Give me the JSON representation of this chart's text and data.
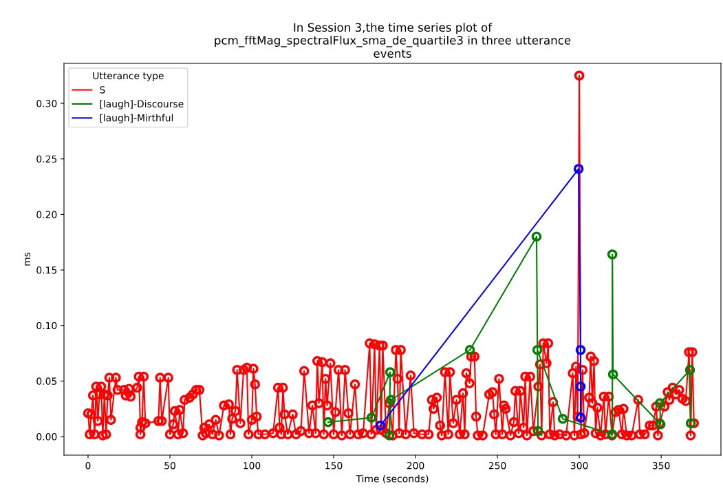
{
  "chart_data": {
    "type": "line",
    "title": "In Session 3,the time series plot of\npcm_fftMag_spectralFlux_sma_de_quartile3 in three utterance\nevents",
    "xlabel": "Time (seconds)",
    "ylabel": "ms",
    "legend_title": "Utterance type",
    "legend": "top left",
    "marker": "circle",
    "line_style": "solid",
    "grid": false,
    "xlim": [
      -14.7,
      386.5
    ],
    "ylim": [
      -0.0167,
      0.336
    ],
    "xticks": [
      0,
      50,
      100,
      150,
      200,
      250,
      300,
      350
    ],
    "yticks": [
      {
        "value": 0,
        "label": "0.00"
      },
      {
        "value": 0.05,
        "label": "0.05"
      },
      {
        "value": 0.1,
        "label": "0.10"
      },
      {
        "value": 0.15,
        "label": "0.15"
      },
      {
        "value": 0.2,
        "label": "0.20"
      },
      {
        "value": 0.25,
        "label": "0.25"
      },
      {
        "value": 0.3,
        "label": "0.30"
      }
    ],
    "series": [
      {
        "name": "S",
        "color": "#ff0000",
        "x": [
          0,
          1,
          2,
          3,
          4,
          5,
          6,
          7,
          8,
          9,
          10,
          11,
          12,
          13,
          14,
          17,
          18,
          22,
          23,
          25,
          26,
          30,
          31,
          32,
          32,
          33,
          34,
          35,
          43,
          44,
          45,
          49,
          50,
          52,
          53,
          55,
          56,
          58,
          59,
          62,
          64,
          66,
          68,
          70,
          71,
          72,
          74,
          76,
          78,
          80,
          83,
          86,
          87,
          88,
          90,
          91,
          93,
          95,
          97,
          98,
          100,
          101,
          102,
          103,
          104,
          108,
          113,
          116,
          117,
          118,
          119,
          120,
          122,
          125,
          127,
          130,
          132,
          135,
          137,
          139,
          140,
          141,
          143,
          144,
          145,
          146,
          148,
          150,
          151,
          153,
          155,
          157,
          159,
          160,
          163,
          165,
          168,
          172,
          173,
          175,
          176,
          178,
          179,
          180,
          182,
          184,
          186,
          188,
          189,
          190,
          191,
          194,
          197,
          199,
          204,
          208,
          210,
          211,
          213,
          215,
          216,
          218,
          220,
          221,
          223,
          225,
          227,
          229,
          230,
          231,
          233,
          234,
          236,
          237,
          238,
          241,
          245,
          247,
          248,
          249,
          251,
          253,
          254,
          255,
          258,
          260,
          261,
          263,
          264,
          266,
          267,
          268,
          270,
          272,
          275,
          276,
          277,
          278,
          280,
          281,
          282,
          284,
          285,
          288,
          292,
          296,
          297,
          298,
          299,
          300,
          301,
          302,
          303,
          306,
          307,
          308,
          309,
          310,
          311,
          313,
          315,
          316,
          318,
          320,
          322,
          324,
          326,
          327,
          329,
          332,
          336,
          337,
          340,
          343,
          345,
          347,
          348,
          349,
          352,
          354,
          355,
          357,
          359,
          361,
          363,
          365,
          367,
          368,
          369,
          370
        ],
        "values": [
          0.021,
          0.002,
          0.02,
          0.037,
          0.002,
          0.045,
          0.014,
          0.038,
          0.045,
          0.001,
          0.038,
          0.002,
          0.037,
          0.053,
          0.015,
          0.053,
          0.042,
          0.042,
          0.037,
          0.043,
          0.036,
          0.044,
          0.054,
          0.008,
          0.002,
          0.013,
          0.054,
          0.012,
          0.014,
          0.053,
          0.014,
          0.053,
          0.002,
          0.011,
          0.023,
          0.002,
          0.024,
          0.003,
          0.033,
          0.035,
          0.038,
          0.042,
          0.042,
          0.001,
          0.008,
          0.003,
          0.011,
          0.002,
          0.015,
          0.001,
          0.028,
          0.029,
          0.002,
          0.016,
          0.023,
          0.06,
          0.012,
          0.06,
          0.062,
          0.002,
          0.015,
          0.061,
          0.047,
          0.018,
          0.002,
          0.002,
          0.003,
          0.044,
          0.008,
          0.002,
          0.044,
          0.02,
          0.002,
          0.02,
          0.002,
          0.005,
          0.059,
          0.003,
          0.028,
          0.003,
          0.068,
          0.03,
          0.067,
          0.002,
          0.052,
          0.028,
          0.066,
          0.002,
          0.022,
          0.06,
          0.001,
          0.06,
          0.021,
          0.002,
          0.047,
          0.002,
          0.003,
          0.084,
          0.002,
          0.083,
          0.006,
          0.082,
          0.006,
          0.082,
          0.003,
          0.03,
          0.001,
          0.078,
          0.052,
          0.003,
          0.078,
          0.002,
          0.055,
          0.003,
          0.002,
          0.002,
          0.033,
          0.025,
          0.035,
          0.01,
          0.001,
          0.058,
          0.002,
          0.058,
          0.012,
          0.033,
          0.002,
          0.039,
          0.002,
          0.057,
          0.048,
          0.072,
          0.072,
          0.018,
          0.001,
          0.001,
          0.038,
          0.04,
          0.02,
          0.002,
          0.052,
          0.002,
          0.028,
          0.025,
          0.001,
          0.013,
          0.041,
          0.003,
          0.041,
          0.008,
          0.054,
          0.001,
          0.054,
          0.005,
          0.045,
          0.065,
          0.001,
          0.084,
          0.066,
          0.084,
          0.002,
          0.031,
          0.001,
          0.002,
          0.001,
          0.057,
          0.001,
          0.063,
          0.018,
          0.325,
          0.002,
          0.06,
          0.003,
          0.035,
          0.072,
          0.03,
          0.068,
          0.003,
          0.026,
          0.001,
          0.036,
          0.002,
          0.036,
          0.001,
          0.022,
          0.024,
          0.002,
          0.025,
          0.001,
          0.001,
          0.033,
          0.002,
          0.002,
          0.01,
          0.01,
          0.027,
          0.001,
          0.012,
          0.027,
          0.04,
          0.033,
          0.044,
          0.038,
          0.042,
          0.034,
          0.032,
          0.076,
          0.001,
          0.076,
          0.012
        ]
      },
      {
        "name": "[laugh]-Discourse",
        "color": "#008000",
        "x": [
          146.6,
          173.1,
          184.5,
          184.0,
          184.9,
          233.2,
          273.9,
          274.8,
          274.4,
          289.9,
          320.2,
          320.2,
          320.6,
          349.6,
          349.2,
          367.6,
          368.1
        ],
        "values": [
          0.013,
          0.017,
          0.058,
          0.001,
          0.033,
          0.078,
          0.18,
          0.005,
          0.078,
          0.016,
          0.002,
          0.164,
          0.056,
          0.011,
          0.03,
          0.06,
          0.012
        ]
      },
      {
        "name": "[laugh]-Mirthful",
        "color": "#0000ff",
        "x": [
          178.6,
          299.6,
          300.8,
          300.8,
          300.8
        ],
        "values": [
          0.01,
          0.241,
          0.078,
          0.045,
          0.017
        ]
      }
    ]
  }
}
